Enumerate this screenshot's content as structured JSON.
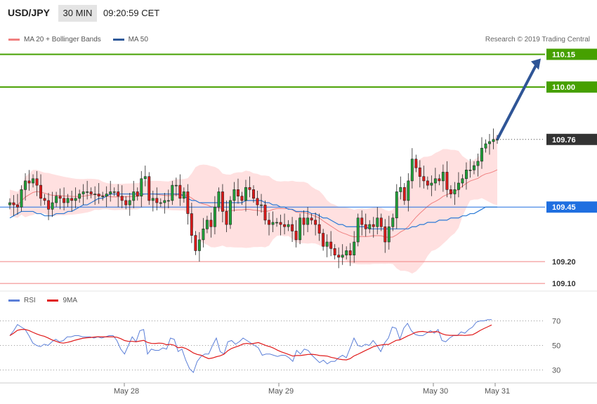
{
  "header": {
    "symbol": "USD/JPY",
    "interval": "30 MIN",
    "time": "09:20:59 CET"
  },
  "legend": {
    "bb_label": "MA 20 + Bollinger Bands",
    "ma50_label": "MA 50",
    "credit": "Research © 2019 Trading Central"
  },
  "colors": {
    "up": "#21a33a",
    "down": "#e01a1a",
    "ma50": "#2a7ad6",
    "bb": "#f08080",
    "arrow": "#2f5596",
    "rsi": "#5b7fd8",
    "rsi_ma": "#e01a1a"
  },
  "chart_data": [
    {
      "type": "candlestick",
      "ylim": [
        109.065,
        110.19
      ],
      "levels": [
        {
          "value": 110.15,
          "label": "110.15",
          "color": "#46a000",
          "kind": "resistance"
        },
        {
          "value": 110.0,
          "label": "110.00",
          "color": "#46a000",
          "kind": "resistance"
        },
        {
          "value": 109.76,
          "label": "109.76",
          "color": "#333333",
          "kind": "last"
        },
        {
          "value": 109.45,
          "label": "109.45",
          "color": "#1f6fe0",
          "kind": "pivot"
        },
        {
          "value": 109.2,
          "label": "109.20",
          "color": "#f08080",
          "kind": "support"
        },
        {
          "value": 109.1,
          "label": "109.10",
          "color": "#f08080",
          "kind": "support"
        }
      ],
      "x_ticks": [
        "May 28",
        "May 29",
        "May 30",
        "May 31"
      ],
      "closes": [
        109.47,
        109.46,
        109.45,
        109.53,
        109.57,
        109.56,
        109.58,
        109.55,
        109.49,
        109.48,
        109.44,
        109.47,
        109.5,
        109.49,
        109.47,
        109.49,
        109.48,
        109.49,
        109.51,
        109.52,
        109.52,
        109.51,
        109.51,
        109.5,
        109.5,
        109.51,
        109.52,
        109.52,
        109.5,
        109.48,
        109.46,
        109.48,
        109.52,
        109.5,
        109.58,
        109.59,
        109.48,
        109.49,
        109.47,
        109.47,
        109.48,
        109.48,
        109.55,
        109.55,
        109.49,
        109.52,
        109.42,
        109.32,
        109.25,
        109.3,
        109.35,
        109.39,
        109.36,
        109.45,
        109.52,
        109.43,
        109.37,
        109.48,
        109.53,
        109.5,
        109.48,
        109.54,
        109.53,
        109.49,
        109.46,
        109.46,
        109.39,
        109.37,
        109.38,
        109.38,
        109.37,
        109.36,
        109.37,
        109.34,
        109.3,
        109.4,
        109.37,
        109.4,
        109.39,
        109.37,
        109.33,
        109.27,
        109.29,
        109.26,
        109.23,
        109.22,
        109.23,
        109.25,
        109.23,
        109.29,
        109.4,
        109.37,
        109.35,
        109.37,
        109.36,
        109.4,
        109.36,
        109.29,
        109.36,
        109.4,
        109.52,
        109.54,
        109.48,
        109.57,
        109.67,
        109.63,
        109.59,
        109.57,
        109.55,
        109.56,
        109.58,
        109.57,
        109.61,
        109.53,
        109.51,
        109.53,
        109.56,
        109.58,
        109.62,
        109.62,
        109.64,
        109.66,
        109.72,
        109.74,
        109.75,
        109.76,
        109.76
      ],
      "ma50": [
        109.4,
        109.41,
        109.42,
        109.43,
        109.43,
        109.43,
        109.43,
        109.42,
        109.42,
        109.41,
        109.41,
        109.41,
        109.42,
        109.42,
        109.42,
        109.43,
        109.43,
        109.44,
        109.45,
        109.46,
        109.46,
        109.47,
        109.48,
        109.49,
        109.49,
        109.5,
        109.51,
        109.51,
        109.51,
        109.51,
        109.51,
        109.51,
        109.51,
        109.51,
        109.51,
        109.51,
        109.51,
        109.51,
        109.51,
        109.51,
        109.51,
        109.51,
        109.51,
        109.51,
        109.51,
        109.5,
        109.49,
        109.48,
        109.48,
        109.47,
        109.47,
        109.47,
        109.47,
        109.47,
        109.47,
        109.47,
        109.47,
        109.47,
        109.47,
        109.47,
        109.47,
        109.48,
        109.48,
        109.48,
        109.48,
        109.48,
        109.47,
        109.47,
        109.46,
        109.46,
        109.45,
        109.45,
        109.44,
        109.44,
        109.43,
        109.43,
        109.43,
        109.43,
        109.42,
        109.42,
        109.41,
        109.4,
        109.4,
        109.39,
        109.38,
        109.37,
        109.37,
        109.36,
        109.36,
        109.36,
        109.36,
        109.36,
        109.36,
        109.35,
        109.35,
        109.35,
        109.35,
        109.35,
        109.35,
        109.35,
        109.35,
        109.35,
        109.35,
        109.35,
        109.36,
        109.36,
        109.37,
        109.37,
        109.38,
        109.38,
        109.38,
        109.39,
        109.39,
        109.39,
        109.4,
        109.4,
        109.4,
        109.41,
        109.41,
        109.42,
        109.42,
        109.43,
        109.44,
        109.45,
        109.45,
        109.45,
        109.45
      ],
      "rsi": [
        58,
        62,
        67,
        65,
        63,
        58,
        52,
        50,
        49,
        51,
        50,
        53,
        55,
        53,
        54,
        57,
        57,
        58,
        58,
        57,
        57,
        57,
        56,
        57,
        56,
        57,
        58,
        58,
        54,
        47,
        43,
        50,
        57,
        53,
        62,
        63,
        43,
        47,
        46,
        46,
        48,
        47,
        56,
        55,
        45,
        47,
        38,
        31,
        28,
        37,
        41,
        43,
        43,
        50,
        56,
        45,
        43,
        53,
        54,
        51,
        53,
        56,
        54,
        52,
        50,
        48,
        42,
        43,
        43,
        42,
        41,
        42,
        42,
        40,
        37,
        46,
        43,
        47,
        46,
        42,
        39,
        36,
        38,
        35,
        37,
        37,
        40,
        42,
        40,
        48,
        56,
        50,
        49,
        51,
        50,
        54,
        50,
        45,
        52,
        56,
        65,
        64,
        55,
        64,
        68,
        62,
        59,
        58,
        58,
        60,
        62,
        60,
        63,
        54,
        53,
        56,
        58,
        58,
        61,
        60,
        63,
        65,
        69,
        70,
        70,
        71,
        71
      ],
      "rsi_ylim": [
        20,
        80
      ],
      "rsi_ticks": [
        30,
        50,
        70
      ]
    }
  ],
  "rsi_legend": {
    "rsi_label": "RSI",
    "ma_label": "9MA"
  }
}
